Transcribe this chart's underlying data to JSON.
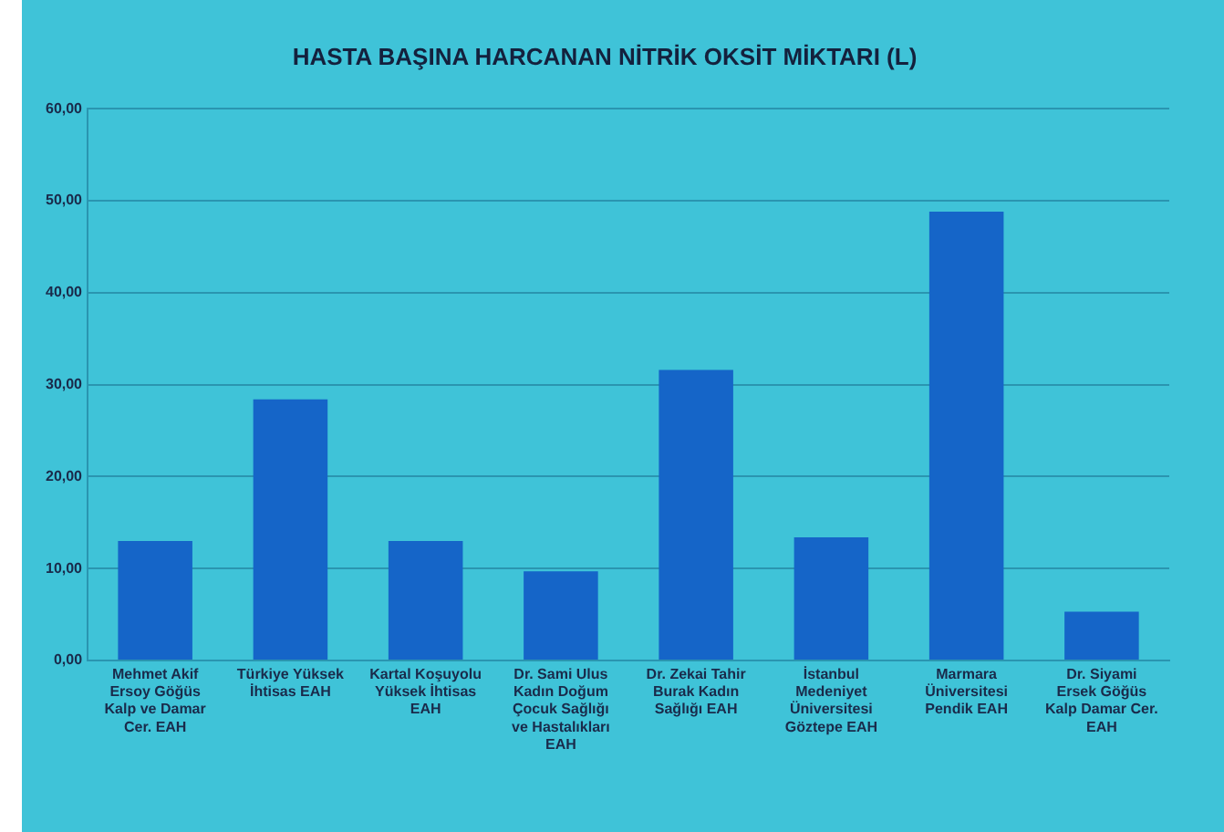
{
  "chart_data": {
    "type": "bar",
    "title": "HASTA BAŞINA HARCANAN NİTRİK OKSİT MİKTARI (L)",
    "categories": [
      "Mehmet Akif Ersoy Göğüs Kalp ve Damar Cer. EAH",
      "Türkiye Yüksek İhtisas EAH",
      "Kartal Koşuyolu Yüksek İhtisas EAH",
      "Dr. Sami Ulus Kadın Doğum Çocuk Sağlığı ve Hastalıkları EAH",
      "Dr. Zekai Tahir Burak Kadın Sağlığı EAH",
      "İstanbul Medeniyet Üniversitesi Göztepe EAH",
      "Marmara Üniversitesi Pendik EAH",
      "Dr. Siyami Ersek Göğüs Kalp Damar Cer. EAH"
    ],
    "values": [
      13.0,
      28.4,
      13.0,
      9.7,
      31.6,
      13.4,
      48.8,
      5.3
    ],
    "color": "#1565c8",
    "ylim": [
      0,
      60
    ],
    "yticks": [
      {
        "value": 0,
        "label": "0,00"
      },
      {
        "value": 10,
        "label": "10,00"
      },
      {
        "value": 20,
        "label": "20,00"
      },
      {
        "value": 30,
        "label": "30,00"
      },
      {
        "value": 40,
        "label": "40,00"
      },
      {
        "value": 50,
        "label": "50,00"
      },
      {
        "value": 60,
        "label": "60,00"
      }
    ],
    "grid": "y"
  }
}
